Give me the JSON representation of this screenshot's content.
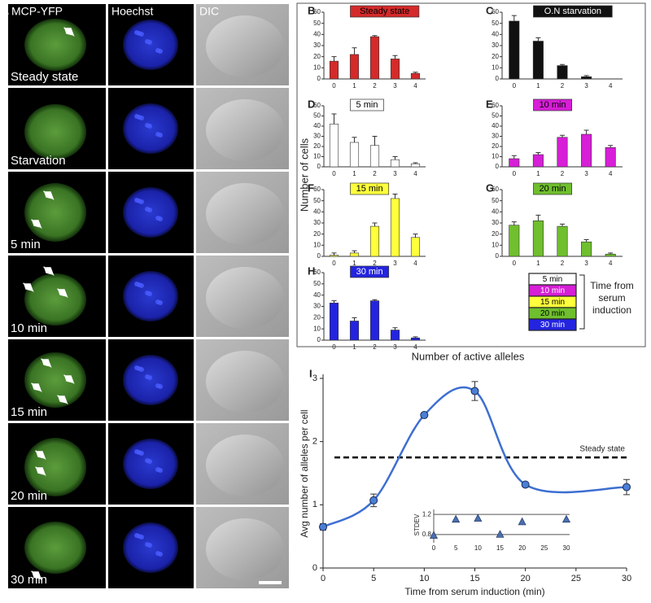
{
  "panel_a": {
    "label": "A",
    "columns": [
      "MCP-YFP",
      "Hoechst",
      "DIC"
    ],
    "rows": [
      "Steady state",
      "Starvation",
      "5 min",
      "10 min",
      "15 min",
      "20 min",
      "30 min"
    ]
  },
  "shared_ylabel": "Number  of cells",
  "shared_xlabel": "Number of active alleles",
  "legend": {
    "title": "Time from serum induction",
    "entries": [
      {
        "name": "5 min",
        "color": "#ffffff",
        "text_color": "#000000"
      },
      {
        "name": "10 min",
        "color": "#d61fd6",
        "text_color": "#ffffff"
      },
      {
        "name": "15 min",
        "color": "#ffff3c",
        "text_color": "#000000"
      },
      {
        "name": "20 min",
        "color": "#6fbf2e",
        "text_color": "#000000"
      },
      {
        "name": "30 min",
        "color": "#2424e0",
        "text_color": "#ffffff"
      }
    ]
  },
  "chart_data": [
    {
      "type": "bar",
      "panel": "B",
      "title": "Steady state",
      "color": "#d42a2a",
      "title_text_color": "#000000",
      "categories": [
        "0",
        "1",
        "2",
        "3",
        "4"
      ],
      "values": [
        16,
        22,
        38,
        18,
        5
      ],
      "errors": [
        4,
        6,
        1,
        3,
        1
      ],
      "ylim": [
        0,
        60
      ],
      "yticks": [
        0,
        10,
        20,
        30,
        40,
        50,
        60
      ]
    },
    {
      "type": "bar",
      "panel": "C",
      "title": "O.N starvation",
      "color": "#111111",
      "title_text_color": "#ffffff",
      "categories": [
        "0",
        "1",
        "2",
        "3",
        "4"
      ],
      "values": [
        52,
        34,
        12,
        2,
        0
      ],
      "errors": [
        5,
        3,
        1,
        1,
        0
      ],
      "ylim": [
        0,
        60
      ],
      "yticks": [
        0,
        10,
        20,
        30,
        40,
        50,
        60
      ]
    },
    {
      "type": "bar",
      "panel": "D",
      "title": "5 min",
      "color": "#ffffff",
      "title_text_color": "#000000",
      "categories": [
        "0",
        "1",
        "2",
        "3",
        "4"
      ],
      "values": [
        42,
        24,
        21,
        7,
        3
      ],
      "errors": [
        10,
        5,
        9,
        3,
        1
      ],
      "ylim": [
        0,
        60
      ],
      "yticks": [
        0,
        10,
        20,
        30,
        40,
        50,
        60
      ]
    },
    {
      "type": "bar",
      "panel": "E",
      "title": "10 min",
      "color": "#d61fd6",
      "title_text_color": "#000000",
      "categories": [
        "0",
        "1",
        "2",
        "3",
        "4"
      ],
      "values": [
        8,
        12,
        29,
        32,
        19
      ],
      "errors": [
        3,
        2,
        2,
        4,
        2
      ],
      "ylim": [
        0,
        60
      ],
      "yticks": [
        0,
        10,
        20,
        30,
        40,
        50,
        60
      ]
    },
    {
      "type": "bar",
      "panel": "F",
      "title": "15 min",
      "color": "#ffff3c",
      "title_text_color": "#000000",
      "categories": [
        "0",
        "1",
        "2",
        "3",
        "4"
      ],
      "values": [
        1,
        3,
        27,
        52,
        17
      ],
      "errors": [
        2,
        2,
        3,
        4,
        3
      ],
      "ylim": [
        0,
        60
      ],
      "yticks": [
        0,
        10,
        20,
        30,
        40,
        50,
        60
      ]
    },
    {
      "type": "bar",
      "panel": "G",
      "title": "20 min",
      "color": "#6fbf2e",
      "title_text_color": "#000000",
      "categories": [
        "0",
        "1",
        "2",
        "3",
        "4"
      ],
      "values": [
        28,
        32,
        27,
        13,
        2
      ],
      "errors": [
        3,
        5,
        2,
        2,
        1
      ],
      "ylim": [
        0,
        60
      ],
      "yticks": [
        0,
        10,
        20,
        30,
        40,
        50,
        60
      ]
    },
    {
      "type": "bar",
      "panel": "H",
      "title": "30 min",
      "color": "#2424e0",
      "title_text_color": "#ffffff",
      "categories": [
        "0",
        "1",
        "2",
        "3",
        "4"
      ],
      "values": [
        33,
        17,
        35,
        9,
        2
      ],
      "errors": [
        2,
        3,
        1,
        2,
        1
      ],
      "ylim": [
        0,
        60
      ],
      "yticks": [
        0,
        10,
        20,
        30,
        40,
        50,
        60
      ]
    },
    {
      "type": "line",
      "panel": "I",
      "xlabel": "Time from serum induction (min)",
      "ylabel": "Avg number of alleles per cell",
      "x": [
        0,
        5,
        10,
        15,
        20,
        30
      ],
      "values": [
        0.65,
        1.07,
        2.42,
        2.8,
        1.32,
        1.28
      ],
      "errors": [
        0.05,
        0.1,
        0.03,
        0.15,
        0.03,
        0.12
      ],
      "color": "#3d6fd2",
      "marker_color": "#4a7fd6",
      "xlim": [
        0,
        30
      ],
      "xticks": [
        0,
        5,
        10,
        15,
        20,
        25,
        30
      ],
      "ylim": [
        0,
        3
      ],
      "yticks": [
        0,
        1,
        2,
        3
      ],
      "reference_line": {
        "value": 1.75,
        "label": "Steady state"
      },
      "inset": {
        "type": "scatter",
        "ylabel": "STDEV",
        "x": [
          0,
          5,
          10,
          15,
          20,
          30
        ],
        "values": [
          0.78,
          1.1,
          1.12,
          0.8,
          1.05,
          1.1
        ],
        "color": "#4a6fb0",
        "xlim": [
          0,
          30
        ],
        "xticks": [
          0,
          5,
          10,
          15,
          20,
          25,
          30
        ],
        "ylim": [
          0.7,
          1.3
        ],
        "yticks": [
          0.8,
          1.2
        ]
      }
    }
  ]
}
